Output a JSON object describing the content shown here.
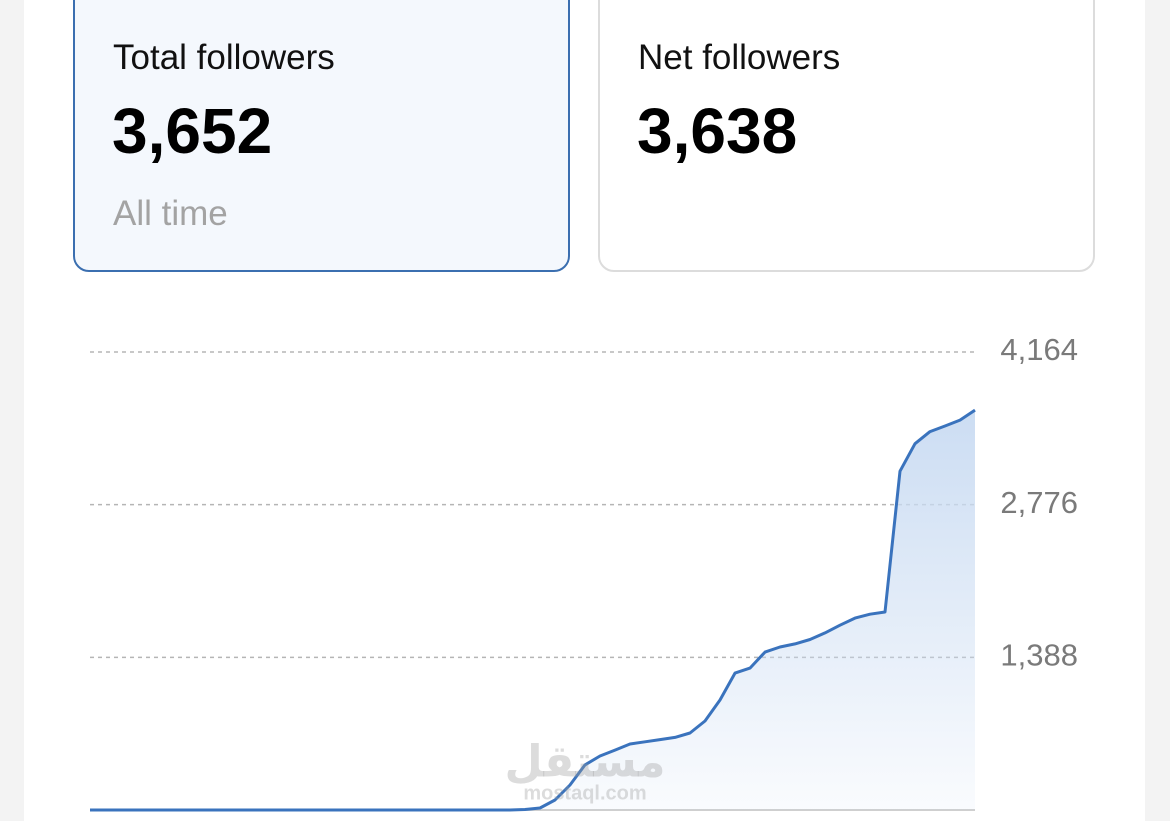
{
  "cards": [
    {
      "label": "Total followers",
      "value": "3,652",
      "subtitle": "All time"
    },
    {
      "label": "Net followers",
      "value": "3,638"
    }
  ],
  "watermark": [
    "مستقل",
    "mostaql.com"
  ],
  "chart_data": {
    "type": "area",
    "values": [
      0,
      0,
      0,
      0,
      0,
      0,
      0,
      0,
      0,
      0,
      0,
      0,
      0,
      0,
      0,
      0,
      0,
      0,
      0,
      0,
      0,
      0,
      0,
      0,
      0,
      0,
      0,
      0,
      0,
      5,
      18,
      91,
      227,
      410,
      491,
      545,
      600,
      620,
      640,
      660,
      700,
      809,
      1000,
      1245,
      1290,
      1436,
      1482,
      1510,
      1550,
      1610,
      1680,
      1745,
      1780,
      1800,
      3080,
      3330,
      3440,
      3491,
      3545,
      3636
    ],
    "color": "#3a73bd",
    "ylim": [
      0,
      4164
    ],
    "yticks": [
      {
        "value": 1388,
        "label": "1,388"
      },
      {
        "value": 2776,
        "label": "2,776"
      },
      {
        "value": 4164,
        "label": "4,164"
      }
    ],
    "grid": true
  }
}
